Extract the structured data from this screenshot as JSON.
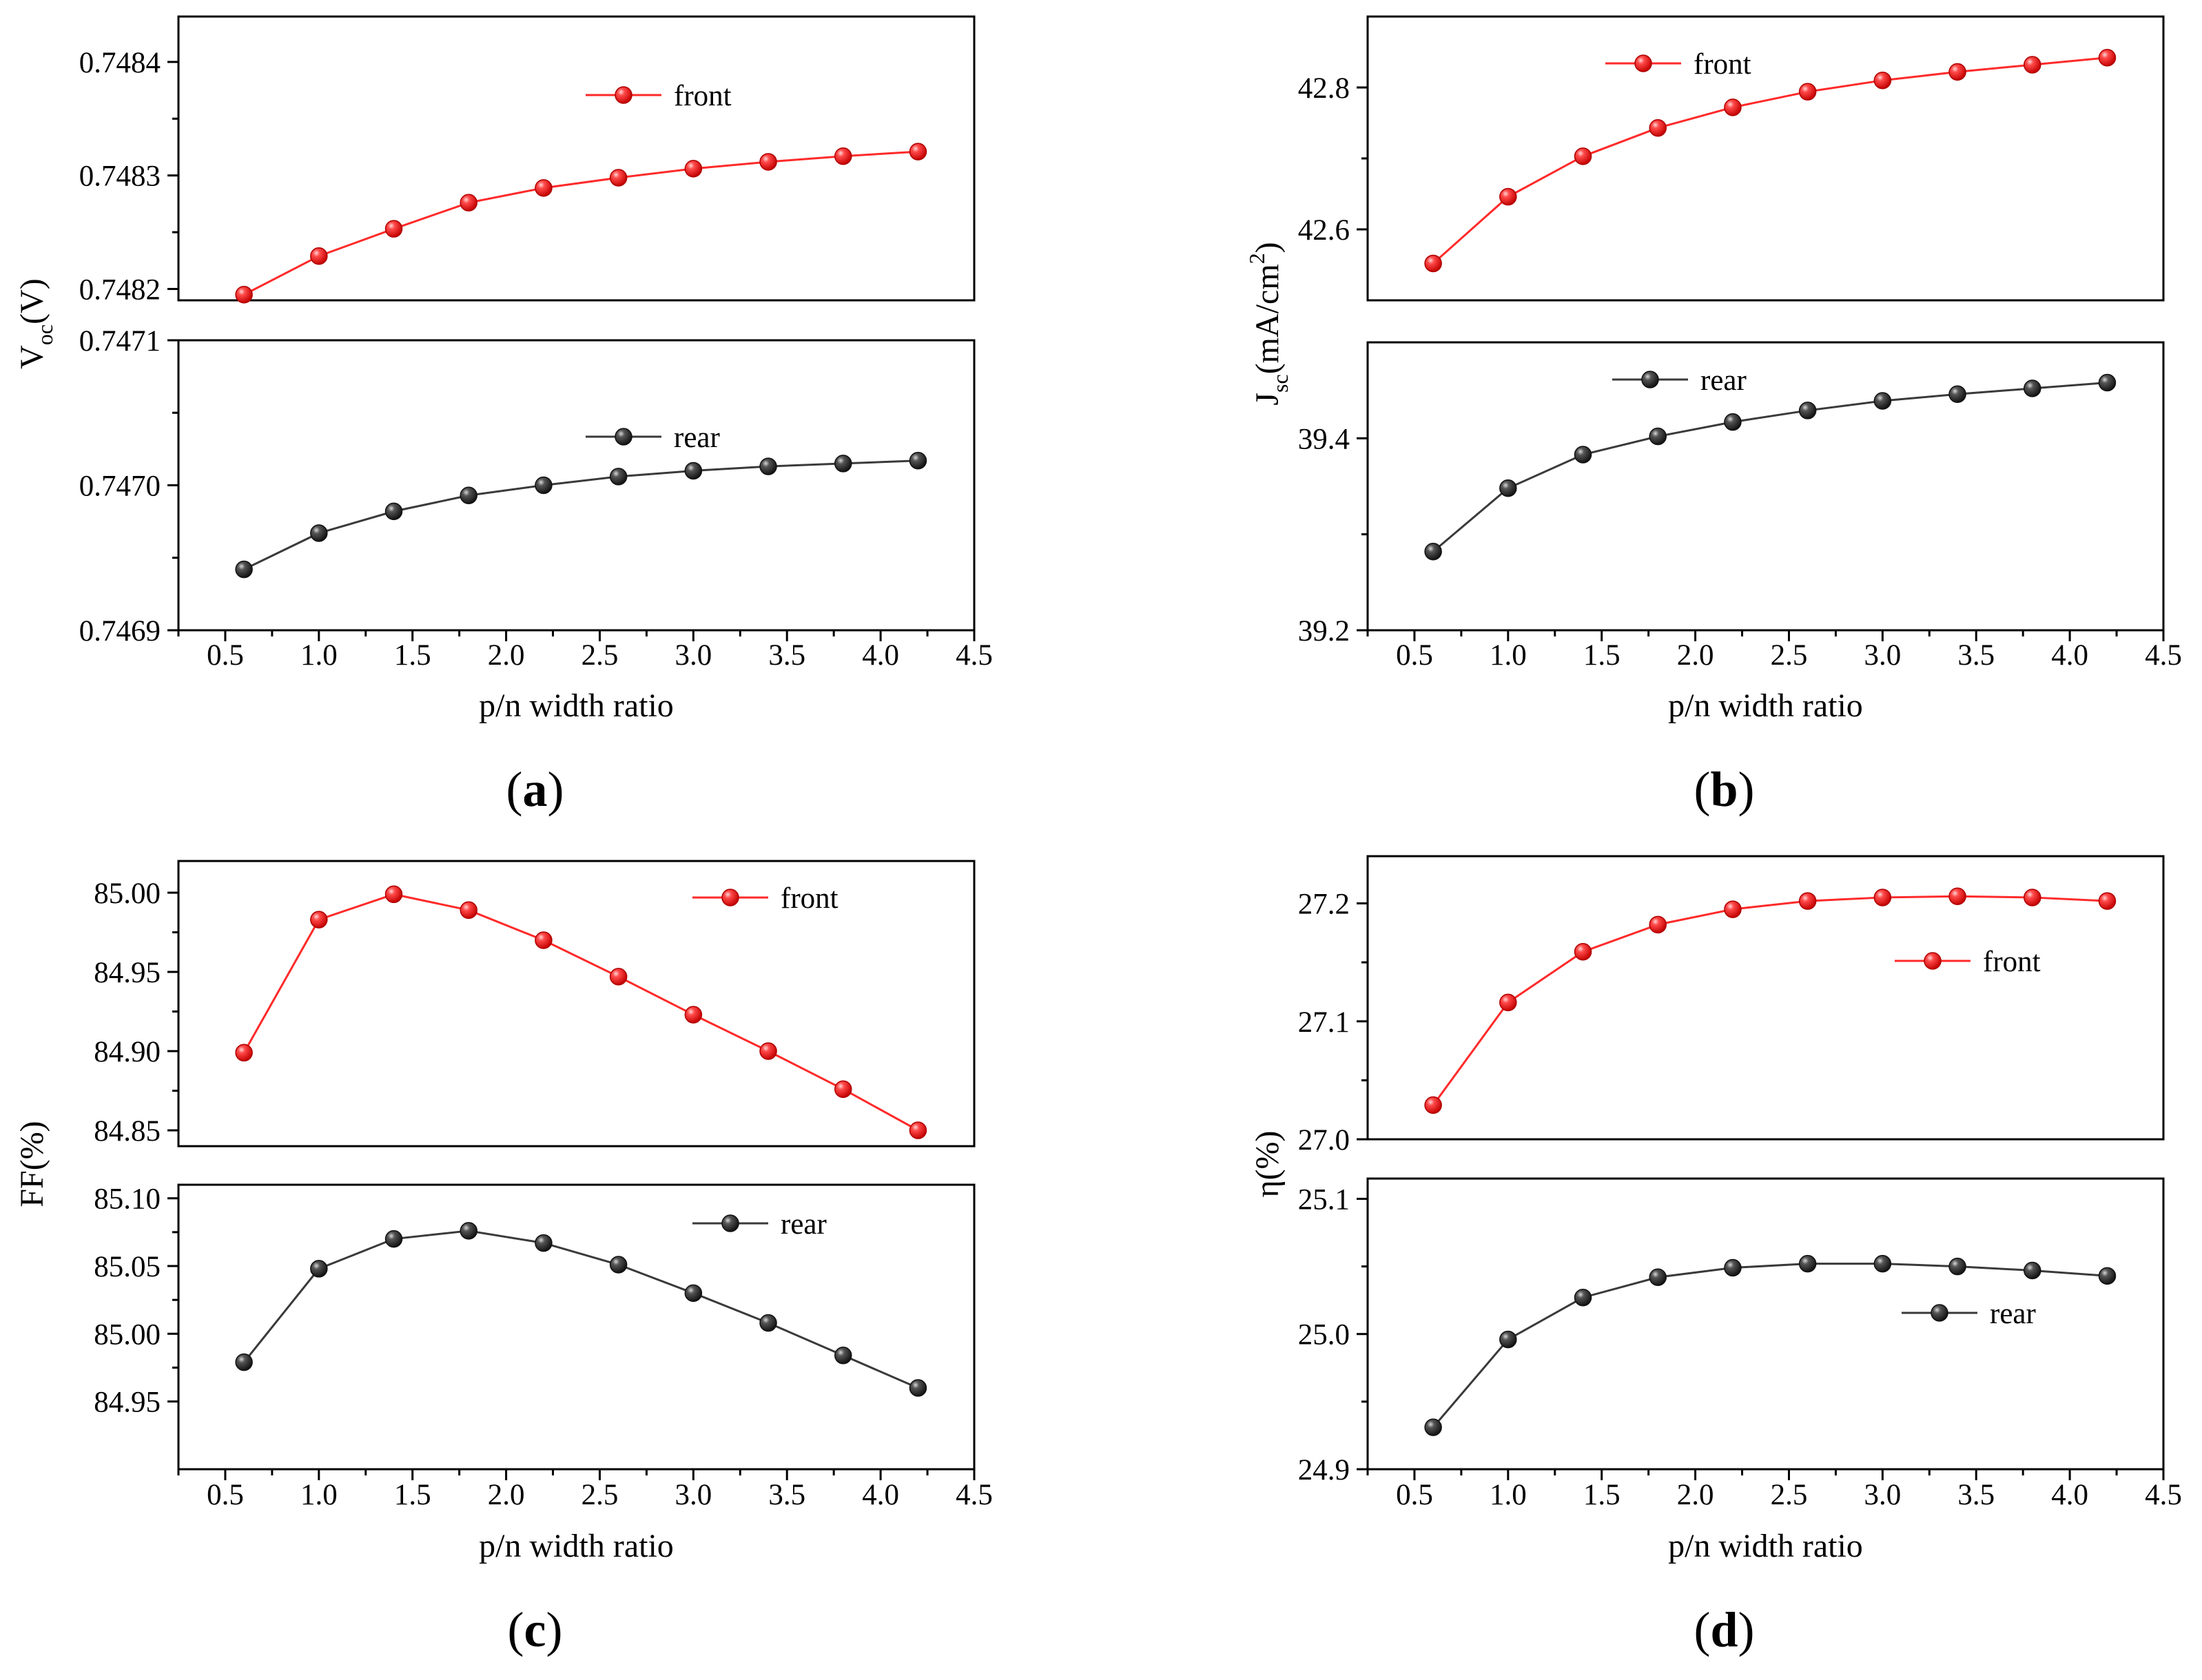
{
  "figure": {
    "colors": {
      "front": "#ff2a2a",
      "rear": "#3a3a3a",
      "axis": "#000000"
    }
  },
  "chart_data": [
    {
      "id": "a",
      "type": "line",
      "caption_letter": "a",
      "xlabel": "p/n width ratio",
      "ylabel_main": "V",
      "ylabel_sub": "oc",
      "ylabel_tail": "(V)",
      "x_ticks": [
        "0.5",
        "1.0",
        "1.5",
        "2.0",
        "2.5",
        "3.0",
        "3.5",
        "4.0",
        "4.5"
      ],
      "xlim": [
        0.25,
        4.5
      ],
      "panels": [
        {
          "series_name": "front",
          "color": "#ff2a2a",
          "legend_position": "top-center",
          "ylim": [
            0.74819,
            0.74844
          ],
          "y_ticks": [
            0.7482,
            0.7483,
            0.7484
          ],
          "y_tick_labels": [
            "0.7482",
            "0.7483",
            "0.7484"
          ],
          "x": [
            0.6,
            1.0,
            1.4,
            1.8,
            2.2,
            2.6,
            3.0,
            3.4,
            3.8,
            4.2
          ],
          "values": [
            0.748195,
            0.748229,
            0.748253,
            0.748276,
            0.748289,
            0.748298,
            0.748306,
            0.748312,
            0.748317,
            0.748321
          ]
        },
        {
          "series_name": "rear",
          "color": "#3a3a3a",
          "legend_position": "top-center",
          "ylim": [
            0.7469,
            0.7471
          ],
          "y_ticks": [
            0.7469,
            0.747,
            0.7471
          ],
          "y_tick_labels": [
            "0.7469",
            "0.7470",
            "0.7471"
          ],
          "x": [
            0.6,
            1.0,
            1.4,
            1.8,
            2.2,
            2.6,
            3.0,
            3.4,
            3.8,
            4.2
          ],
          "values": [
            0.746942,
            0.746967,
            0.746982,
            0.746993,
            0.747,
            0.747006,
            0.74701,
            0.747013,
            0.747015,
            0.747017
          ]
        }
      ]
    },
    {
      "id": "b",
      "type": "line",
      "caption_letter": "b",
      "xlabel": "p/n width ratio",
      "ylabel_main": "J",
      "ylabel_sub": "sc",
      "ylabel_tail": "(mA/cm",
      "ylabel_sup": "2",
      "ylabel_close": ")",
      "x_ticks": [
        "0.5",
        "1.0",
        "1.5",
        "2.0",
        "2.5",
        "3.0",
        "3.5",
        "4.0",
        "4.5"
      ],
      "xlim": [
        0.25,
        4.5
      ],
      "panels": [
        {
          "series_name": "front",
          "color": "#ff2a2a",
          "legend_position": "top-left",
          "ylim": [
            42.5,
            42.9
          ],
          "y_ticks": [
            42.6,
            42.8
          ],
          "y_tick_labels": [
            "42.6",
            "42.8"
          ],
          "x": [
            0.6,
            1.0,
            1.4,
            1.8,
            2.2,
            2.6,
            3.0,
            3.4,
            3.8,
            4.2
          ],
          "values": [
            42.552,
            42.646,
            42.703,
            42.743,
            42.772,
            42.794,
            42.81,
            42.822,
            42.832,
            42.842
          ]
        },
        {
          "series_name": "rear",
          "color": "#3a3a3a",
          "legend_position": "top-left",
          "ylim": [
            39.2,
            39.5
          ],
          "y_ticks": [
            39.2,
            39.4
          ],
          "y_tick_labels": [
            "39.2",
            "39.4"
          ],
          "x": [
            0.6,
            1.0,
            1.4,
            1.8,
            2.2,
            2.6,
            3.0,
            3.4,
            3.8,
            4.2
          ],
          "values": [
            39.282,
            39.348,
            39.383,
            39.402,
            39.417,
            39.429,
            39.439,
            39.446,
            39.452,
            39.458
          ]
        }
      ]
    },
    {
      "id": "c",
      "type": "line",
      "caption_letter": "c",
      "xlabel": "p/n width ratio",
      "ylabel_main": "FF(%)",
      "x_ticks": [
        "0.5",
        "1.0",
        "1.5",
        "2.0",
        "2.5",
        "3.0",
        "3.5",
        "4.0",
        "4.5"
      ],
      "xlim": [
        0.25,
        4.5
      ],
      "panels": [
        {
          "series_name": "front",
          "color": "#ff2a2a",
          "legend_position": "top-right",
          "ylim": [
            84.84,
            85.02
          ],
          "y_ticks": [
            84.85,
            84.9,
            84.95,
            85.0
          ],
          "y_tick_labels": [
            "84.85",
            "84.90",
            "84.95",
            "85.00"
          ],
          "x": [
            0.6,
            1.0,
            1.4,
            1.8,
            2.2,
            2.6,
            3.0,
            3.4,
            3.8,
            4.2
          ],
          "values": [
            84.899,
            84.983,
            84.999,
            84.989,
            84.97,
            84.947,
            84.923,
            84.9,
            84.876,
            84.85
          ]
        },
        {
          "series_name": "rear",
          "color": "#3a3a3a",
          "legend_position": "top-right",
          "ylim": [
            84.9,
            85.11
          ],
          "y_ticks": [
            84.95,
            85.0,
            85.05,
            85.1
          ],
          "y_tick_labels": [
            "84.95",
            "85.00",
            "85.05",
            "85.10"
          ],
          "x": [
            0.6,
            1.0,
            1.4,
            1.8,
            2.2,
            2.6,
            3.0,
            3.4,
            3.8,
            4.2
          ],
          "values": [
            84.979,
            85.048,
            85.07,
            85.076,
            85.067,
            85.051,
            85.03,
            85.008,
            84.984,
            84.96
          ]
        }
      ]
    },
    {
      "id": "d",
      "type": "line",
      "caption_letter": "d",
      "xlabel": "p/n width ratio",
      "ylabel_main": "η(%)",
      "x_ticks": [
        "0.5",
        "1.0",
        "1.5",
        "2.0",
        "2.5",
        "3.0",
        "3.5",
        "4.0",
        "4.5"
      ],
      "xlim": [
        0.25,
        4.5
      ],
      "panels": [
        {
          "series_name": "front",
          "color": "#ff2a2a",
          "legend_position": "right",
          "ylim": [
            27.0,
            27.24
          ],
          "y_ticks": [
            27.0,
            27.1,
            27.2
          ],
          "y_tick_labels": [
            "27.0",
            "27.1",
            "27.2"
          ],
          "x": [
            0.6,
            1.0,
            1.4,
            1.8,
            2.2,
            2.6,
            3.0,
            3.4,
            3.8,
            4.2
          ],
          "values": [
            27.029,
            27.116,
            27.159,
            27.182,
            27.195,
            27.202,
            27.205,
            27.206,
            27.205,
            27.202
          ]
        },
        {
          "series_name": "rear",
          "color": "#3a3a3a",
          "legend_position": "right",
          "ylim": [
            24.9,
            25.115
          ],
          "y_ticks": [
            24.9,
            25.0,
            25.1
          ],
          "y_tick_labels": [
            "24.9",
            "25.0",
            "25.1"
          ],
          "x": [
            0.6,
            1.0,
            1.4,
            1.8,
            2.2,
            2.6,
            3.0,
            3.4,
            3.8,
            4.2
          ],
          "values": [
            24.931,
            24.996,
            25.027,
            25.042,
            25.049,
            25.052,
            25.052,
            25.05,
            25.047,
            25.043
          ]
        }
      ]
    }
  ]
}
